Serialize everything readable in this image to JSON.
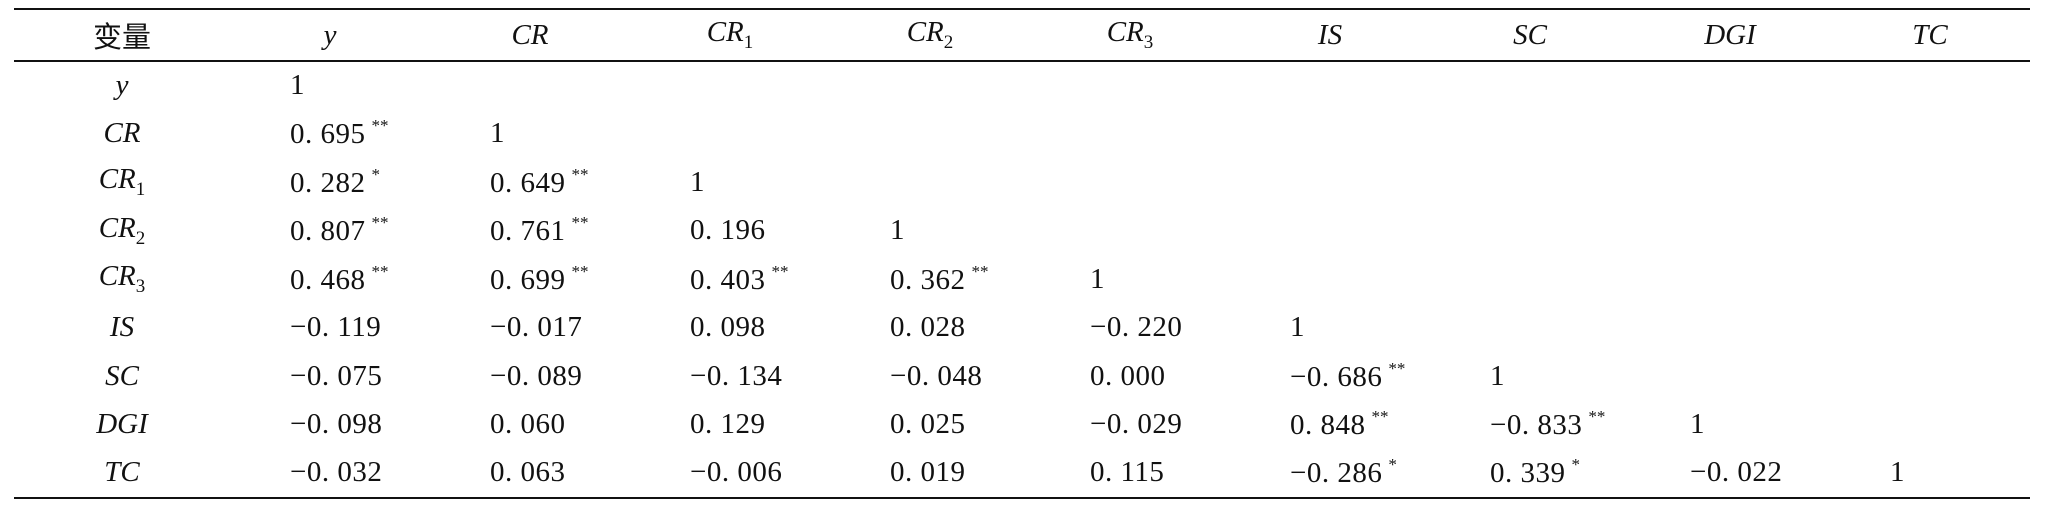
{
  "table": {
    "headers": [
      {
        "text": "变量",
        "sub": ""
      },
      {
        "text": "y",
        "sub": ""
      },
      {
        "text": "CR",
        "sub": ""
      },
      {
        "text": "CR",
        "sub": "1"
      },
      {
        "text": "CR",
        "sub": "2"
      },
      {
        "text": "CR",
        "sub": "3"
      },
      {
        "text": "IS",
        "sub": ""
      },
      {
        "text": "SC",
        "sub": ""
      },
      {
        "text": "DGI",
        "sub": ""
      },
      {
        "text": "TC",
        "sub": ""
      }
    ],
    "rows": [
      {
        "label": "y",
        "label_sub": "",
        "cells": [
          {
            "v": "1",
            "s": ""
          }
        ]
      },
      {
        "label": "CR",
        "label_sub": "",
        "cells": [
          {
            "v": "0. 695",
            "s": "**"
          },
          {
            "v": "1",
            "s": ""
          }
        ]
      },
      {
        "label": "CR",
        "label_sub": "1",
        "cells": [
          {
            "v": "0. 282",
            "s": "*"
          },
          {
            "v": "0. 649",
            "s": "**"
          },
          {
            "v": "1",
            "s": ""
          }
        ]
      },
      {
        "label": "CR",
        "label_sub": "2",
        "cells": [
          {
            "v": "0. 807",
            "s": "**"
          },
          {
            "v": "0. 761",
            "s": "**"
          },
          {
            "v": "0. 196",
            "s": ""
          },
          {
            "v": "1",
            "s": ""
          }
        ]
      },
      {
        "label": "CR",
        "label_sub": "3",
        "cells": [
          {
            "v": "0. 468",
            "s": "**"
          },
          {
            "v": "0. 699",
            "s": "**"
          },
          {
            "v": "0. 403",
            "s": "**"
          },
          {
            "v": "0. 362",
            "s": "**"
          },
          {
            "v": "1",
            "s": ""
          }
        ]
      },
      {
        "label": "IS",
        "label_sub": "",
        "cells": [
          {
            "v": "−0. 119",
            "s": ""
          },
          {
            "v": "−0. 017",
            "s": ""
          },
          {
            "v": "0. 098",
            "s": ""
          },
          {
            "v": "0. 028",
            "s": ""
          },
          {
            "v": "−0. 220",
            "s": ""
          },
          {
            "v": "1",
            "s": ""
          }
        ]
      },
      {
        "label": "SC",
        "label_sub": "",
        "cells": [
          {
            "v": "−0. 075",
            "s": ""
          },
          {
            "v": "−0. 089",
            "s": ""
          },
          {
            "v": "−0. 134",
            "s": ""
          },
          {
            "v": "−0. 048",
            "s": ""
          },
          {
            "v": "0. 000",
            "s": ""
          },
          {
            "v": "−0. 686",
            "s": "**"
          },
          {
            "v": "1",
            "s": ""
          }
        ]
      },
      {
        "label": "DGI",
        "label_sub": "",
        "cells": [
          {
            "v": "−0. 098",
            "s": ""
          },
          {
            "v": "0. 060",
            "s": ""
          },
          {
            "v": "0. 129",
            "s": ""
          },
          {
            "v": "0. 025",
            "s": ""
          },
          {
            "v": "−0. 029",
            "s": ""
          },
          {
            "v": "0. 848",
            "s": "**"
          },
          {
            "v": "−0. 833",
            "s": "**"
          },
          {
            "v": "1",
            "s": ""
          }
        ]
      },
      {
        "label": "TC",
        "label_sub": "",
        "cells": [
          {
            "v": "−0. 032",
            "s": ""
          },
          {
            "v": "0. 063",
            "s": ""
          },
          {
            "v": "−0. 006",
            "s": ""
          },
          {
            "v": "0. 019",
            "s": ""
          },
          {
            "v": "0. 115",
            "s": ""
          },
          {
            "v": "−0. 286",
            "s": "*"
          },
          {
            "v": "0. 339",
            "s": "*"
          },
          {
            "v": "−0. 022",
            "s": ""
          },
          {
            "v": "1",
            "s": ""
          }
        ]
      }
    ]
  }
}
